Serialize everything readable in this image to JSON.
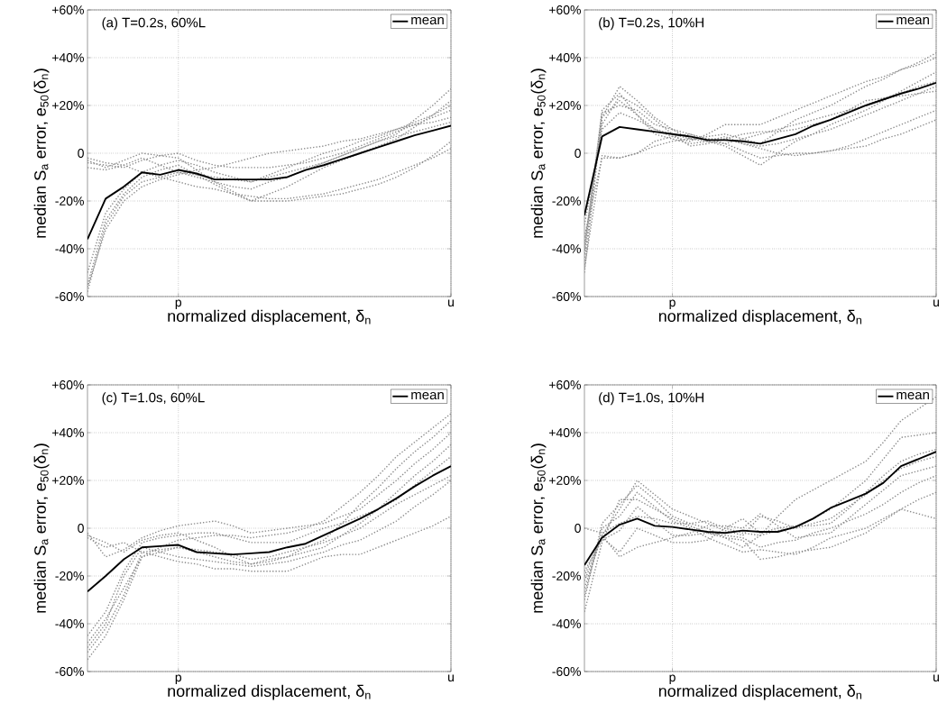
{
  "chart_data": [
    {
      "type": "line",
      "title": "(a) T=0.2s, 60%L",
      "xlabel": "normalized displacement, δ$_{n}$",
      "ylabel": "median S$_{a}$ error, e$_{50}$(δ$_{n}$)",
      "categories": [
        null,
        null,
        null,
        null,
        null,
        "p",
        null,
        null,
        null,
        null,
        null,
        null,
        null,
        null,
        null,
        null,
        null,
        null,
        null,
        null,
        "u"
      ],
      "ylim": [
        -60,
        60
      ],
      "yticks": [
        {
          "value": -60,
          "label": "-60%"
        },
        {
          "value": -40,
          "label": "-40%"
        },
        {
          "value": -20,
          "label": "-20%"
        },
        0,
        {
          "value": 20,
          "label": "+20%"
        },
        {
          "value": 40,
          "label": "+40%"
        },
        {
          "value": 60,
          "label": "+60%"
        }
      ],
      "grid": true,
      "legend": "top right",
      "marker": "none",
      "series": [
        {
          "color": "#8c8c8c",
          "line_style": "dotted",
          "values": [
            -58,
            -30,
            -18,
            -12,
            -10,
            -8,
            -10,
            -12,
            -14,
            -15,
            -12,
            -10,
            -7,
            -4,
            -1,
            2,
            5,
            8,
            14,
            20,
            27
          ]
        },
        {
          "color": "#8c8c8c",
          "line_style": "dotted",
          "values": [
            -55,
            -28,
            -17,
            -10,
            -7,
            -5,
            -9,
            -13,
            -17,
            -20,
            -17,
            -14,
            -10,
            -6,
            -3,
            0,
            3,
            6,
            11,
            16,
            22
          ]
        },
        {
          "color": "#8c8c8c",
          "line_style": "dotted",
          "values": [
            -50,
            -25,
            -15,
            -8,
            -5,
            -3,
            -5,
            -8,
            -10,
            -12,
            -9,
            -6,
            -3,
            0,
            2,
            5,
            7,
            10,
            13,
            16,
            20
          ]
        },
        {
          "color": "#8c8c8c",
          "line_style": "dotted",
          "values": [
            -4,
            -5,
            -6,
            -3,
            -1,
            0,
            -3,
            -5,
            -6,
            -6,
            -6,
            -5,
            -4,
            -2,
            0,
            3,
            6,
            9,
            12,
            15,
            18
          ]
        },
        {
          "color": "#8c8c8c",
          "line_style": "dotted",
          "values": [
            -3,
            -6,
            -3,
            0,
            -1,
            -2,
            -7,
            -12,
            -16,
            -20,
            -20,
            -20,
            -19,
            -18,
            -17,
            -15,
            -13,
            -10,
            -6,
            -1,
            5
          ]
        },
        {
          "color": "#8c8c8c",
          "line_style": "dotted",
          "values": [
            -2,
            -4,
            -5,
            -8,
            -10,
            -12,
            -14,
            -15,
            -17,
            -18,
            -19,
            -19,
            -18,
            -17,
            -15,
            -13,
            -11,
            -8,
            -5,
            -2,
            2
          ]
        },
        {
          "color": "#8c8c8c",
          "line_style": "dotted",
          "values": [
            -56,
            -32,
            -20,
            -14,
            -11,
            -9,
            -7,
            -6,
            -4,
            -2,
            0,
            1,
            2,
            3,
            5,
            6,
            8,
            10,
            12,
            13,
            15
          ]
        },
        {
          "color": "#8c8c8c",
          "line_style": "dotted",
          "values": [
            -6,
            -7,
            -5,
            -2,
            -5,
            -8,
            -9,
            -10,
            -11,
            -12,
            -10,
            -8,
            -6,
            -4,
            -1,
            2,
            5,
            7,
            9,
            11,
            13
          ]
        },
        {
          "name": "mean",
          "color": "#000000",
          "line_style": "solid",
          "values": [
            -36,
            -19,
            -14,
            -8,
            -9,
            -7,
            -8.5,
            -11,
            -11,
            -11,
            -11,
            -10,
            -7,
            -5,
            -2.5,
            0,
            2.5,
            5,
            7.5,
            9.5,
            11.5
          ]
        }
      ]
    },
    {
      "type": "line",
      "title": "(b) T=0.2s, 10%H",
      "xlabel": "normalized displacement, δ$_{n}$",
      "ylabel": "median S$_{a}$ error, e$_{50}$(δ$_{n}$)",
      "categories": [
        null,
        null,
        null,
        null,
        null,
        "p",
        null,
        null,
        null,
        null,
        null,
        null,
        null,
        null,
        null,
        null,
        null,
        null,
        null,
        null,
        "u"
      ],
      "ylim": [
        -60,
        60
      ],
      "yticks": [
        {
          "value": -60,
          "label": "-60%"
        },
        {
          "value": -40,
          "label": "-40%"
        },
        {
          "value": -20,
          "label": "-20%"
        },
        0,
        {
          "value": 20,
          "label": "+20%"
        },
        {
          "value": 40,
          "label": "+40%"
        },
        {
          "value": 60,
          "label": "+60%"
        }
      ],
      "grid": true,
      "legend": "top right",
      "marker": "none",
      "series": [
        {
          "color": "#8c8c8c",
          "line_style": "dotted",
          "values": [
            -50,
            15,
            28,
            22,
            15,
            10,
            6,
            7,
            8,
            6,
            4,
            9,
            14,
            17,
            20,
            24,
            28,
            31,
            35,
            38,
            42
          ]
        },
        {
          "color": "#8c8c8c",
          "line_style": "dotted",
          "values": [
            -45,
            15,
            22,
            16,
            10,
            7,
            5,
            8,
            12,
            12,
            12,
            15,
            18,
            21,
            24,
            27,
            30,
            32,
            35,
            37,
            40
          ]
        },
        {
          "color": "#8c8c8c",
          "line_style": "dotted",
          "values": [
            -40,
            17,
            20,
            18,
            12,
            10,
            8,
            5,
            3,
            -1,
            -5,
            0,
            5,
            8,
            12,
            15,
            18,
            22,
            26,
            30,
            34
          ]
        },
        {
          "color": "#8c8c8c",
          "line_style": "dotted",
          "values": [
            -48,
            -1,
            -2,
            0,
            3,
            5,
            6,
            6,
            6,
            4,
            3,
            4,
            6,
            8,
            10,
            13,
            16,
            19,
            22,
            25,
            28
          ]
        },
        {
          "color": "#8c8c8c",
          "line_style": "dotted",
          "values": [
            -35,
            -2,
            -2,
            0,
            5,
            7,
            8,
            6,
            4,
            1,
            -2,
            -1,
            0,
            0,
            1,
            2,
            3,
            6,
            8,
            11,
            14
          ]
        },
        {
          "color": "#8c8c8c",
          "line_style": "dotted",
          "values": [
            -42,
            18,
            25,
            16,
            8,
            6,
            4,
            5,
            7,
            4,
            2,
            0,
            -1,
            0,
            1,
            3,
            6,
            9,
            12,
            15,
            18
          ]
        },
        {
          "color": "#8c8c8c",
          "line_style": "dotted",
          "values": [
            -30,
            10,
            17,
            14,
            10,
            8,
            6,
            5,
            4,
            6,
            8,
            10,
            12,
            14,
            16,
            18,
            20,
            23,
            25,
            28,
            30
          ]
        },
        {
          "color": "#8c8c8c",
          "line_style": "dotted",
          "values": [
            -38,
            12,
            24,
            20,
            14,
            8,
            3,
            4,
            6,
            8,
            9,
            9,
            10,
            12,
            14,
            18,
            22,
            23,
            24,
            25,
            26
          ]
        },
        {
          "name": "mean",
          "color": "#000000",
          "line_style": "solid",
          "values": [
            -26,
            7,
            11,
            10,
            9,
            8,
            7,
            5.5,
            5.5,
            5,
            4,
            6,
            8,
            11.5,
            14,
            17,
            20,
            22.5,
            25,
            27,
            29.5
          ]
        }
      ]
    },
    {
      "type": "line",
      "title": "(c) T=1.0s, 60%L",
      "xlabel": "normalized displacement, δ$_{n}$",
      "ylabel": "median S$_{a}$ error, e$_{50}$(δ$_{n}$)",
      "categories": [
        null,
        null,
        null,
        null,
        null,
        "p",
        null,
        null,
        null,
        null,
        null,
        null,
        null,
        null,
        null,
        null,
        null,
        null,
        null,
        null,
        "u"
      ],
      "ylim": [
        -60,
        60
      ],
      "yticks": [
        {
          "value": -60,
          "label": "-60%"
        },
        {
          "value": -40,
          "label": "-40%"
        },
        {
          "value": -20,
          "label": "-20%"
        },
        0,
        {
          "value": 20,
          "label": "+20%"
        },
        {
          "value": 40,
          "label": "+40%"
        },
        {
          "value": 60,
          "label": "+60%"
        }
      ],
      "grid": true,
      "legend": "top right",
      "marker": "none",
      "series": [
        {
          "color": "#8c8c8c",
          "line_style": "dotted",
          "values": [
            -55,
            -45,
            -30,
            -12,
            -8,
            -5,
            -4,
            -3,
            -3,
            -4,
            -3,
            -2,
            0,
            3,
            9,
            15,
            22,
            30,
            36,
            42,
            48
          ]
        },
        {
          "color": "#8c8c8c",
          "line_style": "dotted",
          "values": [
            -52,
            -42,
            -28,
            -10,
            -9,
            -8,
            -10,
            -12,
            -14,
            -15,
            -13,
            -12,
            -8,
            -5,
            2,
            10,
            17,
            25,
            32,
            38,
            45
          ]
        },
        {
          "color": "#8c8c8c",
          "line_style": "dotted",
          "values": [
            -3,
            -6,
            -10,
            -5,
            -3,
            -2,
            -5,
            -8,
            -12,
            -15,
            -14,
            -12,
            -10,
            -8,
            -3,
            2,
            8,
            15,
            22,
            28,
            35
          ]
        },
        {
          "color": "#8c8c8c",
          "line_style": "dotted",
          "values": [
            -2,
            -12,
            -9,
            -4,
            -1,
            1,
            2,
            3,
            1,
            -2,
            -1,
            0,
            1,
            2,
            5,
            8,
            14,
            20,
            27,
            33,
            40
          ]
        },
        {
          "color": "#8c8c8c",
          "line_style": "dotted",
          "values": [
            -50,
            -40,
            -20,
            -8,
            -10,
            -12,
            -13,
            -14,
            -15,
            -16,
            -15,
            -14,
            -12,
            -10,
            -7,
            -5,
            -1,
            3,
            9,
            14,
            20
          ]
        },
        {
          "color": "#8c8c8c",
          "line_style": "dotted",
          "values": [
            -4,
            -8,
            -6,
            -10,
            -12,
            -14,
            -15,
            -17,
            -17,
            -18,
            -18,
            -18,
            -15,
            -12,
            -11,
            -11,
            -8,
            -5,
            -2,
            1,
            5
          ]
        },
        {
          "color": "#8c8c8c",
          "line_style": "dotted",
          "values": [
            -48,
            -38,
            -25,
            -12,
            -10,
            -8,
            -9,
            -10,
            -11,
            -13,
            -12,
            -10,
            -8,
            -6,
            -3,
            0,
            5,
            10,
            14,
            18,
            22
          ]
        },
        {
          "color": "#8c8c8c",
          "line_style": "dotted",
          "values": [
            -45,
            -35,
            -18,
            -6,
            -4,
            -3,
            -2,
            -2,
            -4,
            -6,
            -6,
            -6,
            -3,
            0,
            2,
            5,
            8,
            12,
            18,
            24,
            30
          ]
        },
        {
          "name": "mean",
          "color": "#000000",
          "line_style": "solid",
          "values": [
            -26.5,
            -20,
            -13,
            -8,
            -7.5,
            -7,
            -10,
            -10.5,
            -11,
            -10.5,
            -10,
            -8,
            -6.5,
            -3,
            0.5,
            4,
            8,
            12.5,
            17.5,
            22,
            26
          ]
        }
      ]
    },
    {
      "type": "line",
      "title": "(d) T=1.0s, 10%H",
      "xlabel": "normalized displacement, δ$_{n}$",
      "ylabel": "median S$_{a}$ error, e$_{50}$(δ$_{n}$)",
      "categories": [
        null,
        null,
        null,
        null,
        null,
        "p",
        null,
        null,
        null,
        null,
        null,
        null,
        null,
        null,
        null,
        null,
        null,
        null,
        null,
        null,
        "u"
      ],
      "ylim": [
        -60,
        60
      ],
      "yticks": [
        {
          "value": -60,
          "label": "-60%"
        },
        {
          "value": -40,
          "label": "-40%"
        },
        {
          "value": -20,
          "label": "-20%"
        },
        0,
        {
          "value": 20,
          "label": "+20%"
        },
        {
          "value": 40,
          "label": "+40%"
        },
        {
          "value": 60,
          "label": "+60%"
        }
      ],
      "grid": true,
      "legend": "top right",
      "marker": "none",
      "series": [
        {
          "color": "#8c8c8c",
          "line_style": "dotted",
          "values": [
            -30,
            2,
            10,
            18,
            12,
            5,
            2,
            0,
            -4,
            -8,
            -3,
            5,
            12,
            16,
            20,
            24,
            28,
            36,
            45,
            50,
            55
          ]
        },
        {
          "color": "#8c8c8c",
          "line_style": "dotted",
          "values": [
            -25,
            -3,
            8,
            20,
            14,
            8,
            5,
            2,
            -1,
            -3,
            5,
            3,
            0,
            4,
            8,
            14,
            20,
            29,
            38,
            39,
            40
          ]
        },
        {
          "color": "#8c8c8c",
          "line_style": "dotted",
          "values": [
            -35,
            -6,
            12,
            12,
            8,
            4,
            1,
            -2,
            -4,
            -5,
            -13,
            -12,
            -10,
            -9,
            -8,
            -5,
            -2,
            3,
            8,
            6,
            4
          ]
        },
        {
          "color": "#8c8c8c",
          "line_style": "dotted",
          "values": [
            -20,
            -3,
            -12,
            -8,
            -6,
            -4,
            -2,
            1,
            1,
            0,
            6,
            1,
            -4,
            -3,
            -2,
            4,
            10,
            16,
            22,
            24,
            26
          ]
        },
        {
          "color": "#8c8c8c",
          "line_style": "dotted",
          "values": [
            -28,
            0,
            5,
            15,
            9,
            3,
            0,
            -4,
            -7,
            -10,
            -9,
            -10,
            -11,
            -8,
            -4,
            -2,
            0,
            4,
            8,
            12,
            15
          ]
        },
        {
          "color": "#8c8c8c",
          "line_style": "dotted",
          "values": [
            0,
            -2,
            2,
            5,
            4,
            2,
            2,
            3,
            0,
            -2,
            -3,
            -1,
            0,
            2,
            4,
            9,
            14,
            20,
            25,
            28,
            30
          ]
        },
        {
          "color": "#8c8c8c",
          "line_style": "dotted",
          "values": [
            -22,
            -4,
            -10,
            0,
            -3,
            -6,
            -6,
            -5,
            0,
            4,
            -2,
            0,
            1,
            1,
            2,
            8,
            15,
            22,
            28,
            31,
            33
          ]
        },
        {
          "color": "#8c8c8c",
          "line_style": "dotted",
          "values": [
            -18,
            -5,
            -1,
            9,
            3,
            -3,
            -3,
            -2,
            -3,
            -4,
            -8,
            -6,
            -5,
            -2,
            0,
            3,
            6,
            10,
            15,
            19,
            22
          ]
        },
        {
          "name": "mean",
          "color": "#000000",
          "line_style": "solid",
          "values": [
            -15.5,
            -4,
            1.5,
            4,
            1,
            0.5,
            -0.5,
            -1.5,
            -2,
            -1,
            -1.5,
            -1.5,
            0.5,
            4,
            8.5,
            11.5,
            14.5,
            19,
            26,
            29,
            32
          ]
        }
      ]
    }
  ]
}
